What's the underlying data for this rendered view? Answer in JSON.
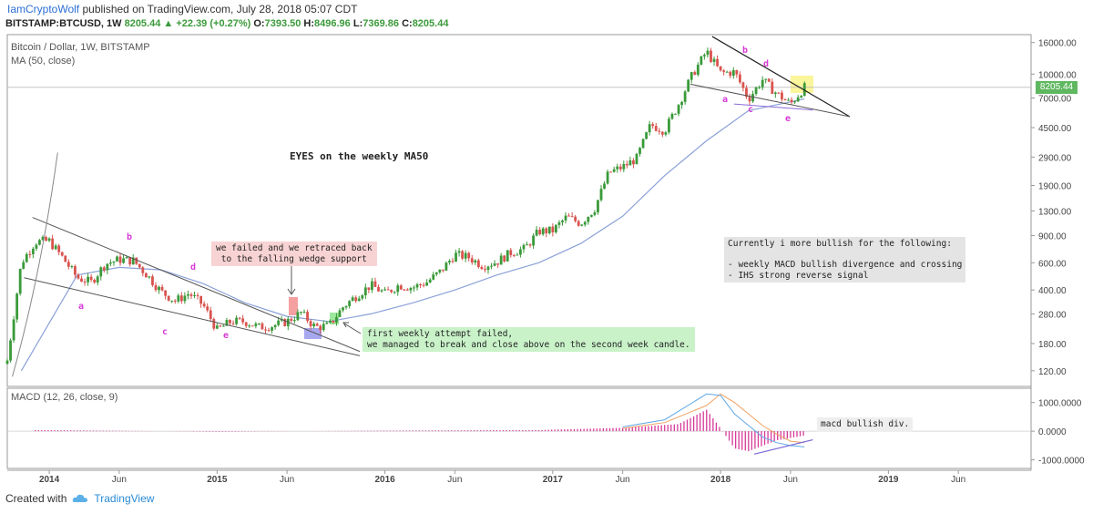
{
  "header": {
    "author": "IamCryptoWolf",
    "published": "published on TradingView.com, July 28, 2018 05:07 CDT",
    "symbol": "BITSTAMP:BTCUSD, 1W",
    "last": "8205.44",
    "change": "▲ +22.39 (+0.27%)",
    "o_label": "O:",
    "o": "7393.50",
    "h_label": "H:",
    "h": "8496.96",
    "l_label": "L:",
    "l": "7369.86",
    "c_label": "C:",
    "c": "8205.44"
  },
  "panel_title": "Bitcoin / Dollar, 1W, BITSTAMP",
  "indicator_title": "MA (50, close)",
  "macd_title": "MACD (12, 26, close, 9)",
  "price_tag": "8205.44",
  "annotations": {
    "eyes": "EYES on the weekly MA50",
    "failed": "we failed and we retraced back\n to the falling wedge support",
    "first_attempt": "first weekly attempt failed,\nwe managed to break and close above on the second week candle.",
    "bullish": "Currently i more bullish for the following:\n\n- weekly MACD bullish divergence and crossing\n- IHS strong reverse signal",
    "macd_div": "macd bullish div."
  },
  "wave_labels": [
    "a",
    "b",
    "c",
    "d",
    "e",
    "a",
    "b",
    "c",
    "d",
    "e"
  ],
  "footer": {
    "created": "Created with",
    "brand": "TradingView"
  },
  "colors": {
    "up": "#3a9a3a",
    "down": "#d9534f",
    "ma": "#8aa0d8",
    "macd_hist": "#d63a9a",
    "macd_line": "#5fa8e8",
    "signal_line": "#f0a060",
    "wedge": "#555555",
    "highlight_yellow": "#fbf59b",
    "highlight_red": "#f4a0a0",
    "highlight_blue": "#a8a8f0",
    "highlight_green": "#9de89d"
  },
  "chart_data": [
    {
      "type": "candlestick",
      "title": "Bitcoin / Dollar, 1W, BITSTAMP",
      "scale": "log",
      "y_ticks": [
        120,
        180,
        280,
        400,
        600,
        900,
        1300,
        1900,
        2900,
        4500,
        7000,
        10000,
        16000
      ],
      "y_tick_labels": [
        "120.00",
        "180.00",
        "280.00",
        "400.00",
        "600.00",
        "900.00",
        "1300.00",
        "1900.00",
        "2900.00",
        "4500.00",
        "7000.00",
        "10000.00",
        "16000.00"
      ],
      "x_tick_labels": [
        "2014",
        "Jun",
        "2015",
        "Jun",
        "2016",
        "Jun",
        "2017",
        "Jun",
        "2018",
        "Jun",
        "2019",
        "Jun"
      ],
      "x_tick_dates": [
        "2014-01",
        "2014-06",
        "2015-01",
        "2015-06",
        "2016-01",
        "2016-06",
        "2017-01",
        "2017-06",
        "2018-01",
        "2018-06",
        "2019-01",
        "2019-06"
      ],
      "close_path": [
        [
          "2013-10",
          140
        ],
        [
          "2013-11",
          600
        ],
        [
          "2013-12",
          820
        ],
        [
          "2014-01",
          830
        ],
        [
          "2014-02",
          640
        ],
        [
          "2014-03",
          480
        ],
        [
          "2014-04",
          450
        ],
        [
          "2014-05",
          590
        ],
        [
          "2014-06",
          630
        ],
        [
          "2014-07",
          620
        ],
        [
          "2014-08",
          500
        ],
        [
          "2014-09",
          390
        ],
        [
          "2014-10",
          340
        ],
        [
          "2014-11",
          380
        ],
        [
          "2014-12",
          320
        ],
        [
          "2015-01",
          220
        ],
        [
          "2015-02",
          250
        ],
        [
          "2015-03",
          250
        ],
        [
          "2015-04",
          230
        ],
        [
          "2015-05",
          235
        ],
        [
          "2015-06",
          250
        ],
        [
          "2015-07",
          285
        ],
        [
          "2015-08",
          230
        ],
        [
          "2015-09",
          235
        ],
        [
          "2015-10",
          310
        ],
        [
          "2015-11",
          370
        ],
        [
          "2015-12",
          430
        ],
        [
          "2016-01",
          380
        ],
        [
          "2016-02",
          430
        ],
        [
          "2016-03",
          415
        ],
        [
          "2016-04",
          450
        ],
        [
          "2016-05",
          530
        ],
        [
          "2016-06",
          680
        ],
        [
          "2016-07",
          650
        ],
        [
          "2016-08",
          575
        ],
        [
          "2016-09",
          608
        ],
        [
          "2016-10",
          700
        ],
        [
          "2016-11",
          740
        ],
        [
          "2016-12",
          960
        ],
        [
          "2017-01",
          970
        ],
        [
          "2017-02",
          1190
        ],
        [
          "2017-03",
          1080
        ],
        [
          "2017-04",
          1350
        ],
        [
          "2017-05",
          2300
        ],
        [
          "2017-06",
          2500
        ],
        [
          "2017-07",
          2850
        ],
        [
          "2017-08",
          4700
        ],
        [
          "2017-09",
          4300
        ],
        [
          "2017-10",
          6400
        ],
        [
          "2017-11",
          10000
        ],
        [
          "2017-12",
          14000
        ],
        [
          "2018-01",
          10200
        ],
        [
          "2018-02",
          10300
        ],
        [
          "2018-03",
          6900
        ],
        [
          "2018-04",
          9200
        ],
        [
          "2018-05",
          7500
        ],
        [
          "2018-06",
          6400
        ],
        [
          "2018-07",
          8205
        ]
      ],
      "ma50_path": [
        [
          "2013-11",
          120
        ],
        [
          "2014-03",
          500
        ],
        [
          "2014-06",
          560
        ],
        [
          "2014-09",
          540
        ],
        [
          "2014-12",
          440
        ],
        [
          "2015-03",
          330
        ],
        [
          "2015-06",
          270
        ],
        [
          "2015-09",
          250
        ],
        [
          "2015-12",
          280
        ],
        [
          "2016-03",
          330
        ],
        [
          "2016-06",
          400
        ],
        [
          "2016-09",
          500
        ],
        [
          "2016-12",
          600
        ],
        [
          "2017-03",
          800
        ],
        [
          "2017-06",
          1200
        ],
        [
          "2017-09",
          2200
        ],
        [
          "2017-12",
          3700
        ],
        [
          "2018-03",
          5800
        ],
        [
          "2018-06",
          6600
        ],
        [
          "2018-07",
          6900
        ]
      ]
    },
    {
      "type": "bar",
      "title": "MACD (12, 26, close, 9)",
      "y_ticks": [
        1000,
        0,
        -1000
      ],
      "y_tick_labels": [
        "1000.0000",
        "0.0000",
        "-1000.0000"
      ],
      "histogram_path": [
        [
          "2013-12",
          40
        ],
        [
          "2014-06",
          15
        ],
        [
          "2015-01",
          -20
        ],
        [
          "2016-01",
          20
        ],
        [
          "2016-12",
          40
        ],
        [
          "2017-06",
          120
        ],
        [
          "2017-10",
          250
        ],
        [
          "2017-12",
          750
        ],
        [
          "2018-01",
          100
        ],
        [
          "2018-02",
          -600
        ],
        [
          "2018-03",
          -700
        ],
        [
          "2018-05",
          -320
        ],
        [
          "2018-07",
          -150
        ]
      ],
      "macd_path": [
        [
          "2017-06",
          150
        ],
        [
          "2017-09",
          400
        ],
        [
          "2017-12",
          1300
        ],
        [
          "2018-01",
          1250
        ],
        [
          "2018-02",
          600
        ],
        [
          "2018-03",
          200
        ],
        [
          "2018-04",
          -200
        ],
        [
          "2018-05",
          -400
        ],
        [
          "2018-06",
          -500
        ],
        [
          "2018-07",
          -550
        ]
      ],
      "signal_path": [
        [
          "2017-06",
          100
        ],
        [
          "2017-09",
          300
        ],
        [
          "2017-12",
          900
        ],
        [
          "2018-01",
          1300
        ],
        [
          "2018-02",
          1000
        ],
        [
          "2018-03",
          600
        ],
        [
          "2018-04",
          200
        ],
        [
          "2018-05",
          -100
        ],
        [
          "2018-06",
          -350
        ],
        [
          "2018-07",
          -400
        ]
      ]
    }
  ]
}
